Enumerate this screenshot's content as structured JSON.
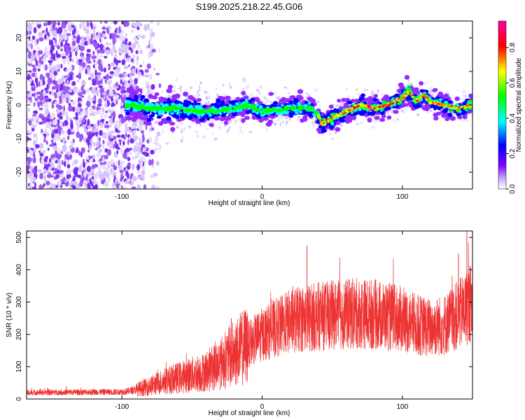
{
  "title": "S199.2025.218.22.45.G06",
  "chart_data": [
    {
      "type": "heatmap",
      "xlabel": "Height of straight line (km)",
      "ylabel": "Frequency (Hz)",
      "xlim": [
        -168,
        150
      ],
      "ylim": [
        -25,
        25
      ],
      "x_ticks": [
        -100,
        0,
        100
      ],
      "x_tick_labels": [
        "-100",
        "0",
        "100"
      ],
      "y_ticks": [
        -20,
        -10,
        0,
        10,
        20
      ],
      "y_tick_labels": [
        "-20",
        "-10",
        "0",
        "10",
        "20"
      ],
      "colorbar": {
        "label": "Normalized spectral amplitude",
        "range": [
          0,
          0.95
        ],
        "ticks": [
          0.0,
          0.2,
          0.4,
          0.6,
          0.8
        ],
        "tick_labels": [
          "0.0",
          "0.2",
          "0.4",
          "0.6",
          "0.8"
        ],
        "colormap": [
          "#ffffff",
          "#7f00ff",
          "#0000ff",
          "#00ffff",
          "#00ff00",
          "#ffff00",
          "#ff0000",
          "#ff00aa"
        ]
      },
      "ridge": {
        "x": [
          -95,
          -80,
          -60,
          -40,
          -20,
          -10,
          0,
          20,
          35,
          40,
          43,
          45,
          50,
          60,
          70,
          80,
          90,
          100,
          105,
          110,
          115,
          120,
          130,
          140,
          150
        ],
        "y": [
          0,
          -1,
          -1,
          -2,
          -1,
          0,
          -2,
          -1,
          -1,
          -3,
          -6,
          -5,
          -4,
          -2,
          0,
          -1,
          0,
          2,
          4,
          1,
          3,
          1,
          0,
          -1,
          0
        ]
      }
    },
    {
      "type": "line",
      "xlabel": "Height of straight line (km)",
      "ylabel": "SNR (10 * v/v)",
      "xlim": [
        -168,
        150
      ],
      "ylim": [
        0,
        520
      ],
      "x_ticks": [
        -100,
        0,
        100
      ],
      "x_tick_labels": [
        "-100",
        "0",
        "100"
      ],
      "y_ticks": [
        0,
        100,
        200,
        300,
        400,
        500
      ],
      "y_tick_labels": [
        "0",
        "100",
        "200",
        "300",
        "400",
        "500"
      ],
      "series_color": "#ee3333",
      "envelope": {
        "x": [
          -168,
          -100,
          -90,
          -80,
          -70,
          -60,
          -50,
          -40,
          -30,
          -20,
          -10,
          0,
          10,
          20,
          30,
          40,
          50,
          60,
          70,
          80,
          90,
          100,
          110,
          120,
          130,
          140,
          150
        ],
        "y": [
          20,
          22,
          28,
          40,
          55,
          65,
          75,
          85,
          110,
          140,
          170,
          200,
          220,
          240,
          250,
          255,
          260,
          262,
          265,
          262,
          255,
          245,
          230,
          220,
          230,
          260,
          300
        ]
      },
      "spikes": [
        {
          "x": 32,
          "y": 475
        },
        {
          "x": 146,
          "y": 520
        },
        {
          "x": 140,
          "y": 450
        },
        {
          "x": -22,
          "y": 250
        }
      ]
    }
  ]
}
